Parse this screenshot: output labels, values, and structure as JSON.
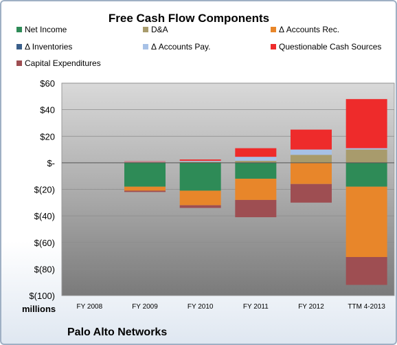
{
  "chart_data": {
    "type": "bar",
    "stacked": true,
    "title": "Free Cash Flow Components",
    "units_label": "millions",
    "company_label": "Palo Alto Networks",
    "categories": [
      "FY 2008",
      "FY 2009",
      "FY 2010",
      "FY 2011",
      "FY 2012",
      "TTM 4-2013"
    ],
    "ylim": [
      -100,
      60
    ],
    "yticks": [
      60,
      40,
      20,
      0,
      -20,
      -40,
      -60,
      -80,
      -100
    ],
    "ytick_labels": [
      "$60",
      "$40",
      "$20",
      "$-",
      "$(20)",
      "$(40)",
      "$(60)",
      "$(80)",
      "$(100)"
    ],
    "grid": true,
    "legend_position": "top",
    "series": [
      {
        "name": "Net Income",
        "color": "#2e8b57",
        "values": [
          0,
          -18,
          -21,
          -12,
          0,
          -18
        ]
      },
      {
        "name": "D&A",
        "color": "#a89b6c",
        "values": [
          0,
          0.5,
          0.8,
          1.5,
          6,
          10
        ]
      },
      {
        "name": "Δ Accounts Rec.",
        "color": "#e8862a",
        "values": [
          0,
          -3,
          -11,
          -16,
          -16,
          -53
        ]
      },
      {
        "name": "Δ Inventories",
        "color": "#3a5f8a",
        "values": [
          0,
          0,
          0,
          0,
          0,
          0
        ]
      },
      {
        "name": "Δ Accounts Pay.",
        "color": "#a7c1e6",
        "values": [
          0,
          0.3,
          0.7,
          3,
          4,
          1
        ]
      },
      {
        "name": "Questionable Cash Sources",
        "color": "#ee2b2b",
        "values": [
          0,
          0.3,
          1,
          6.5,
          15,
          37
        ]
      },
      {
        "name": "Capital Expenditures",
        "color": "#9e4e52",
        "values": [
          0,
          -1,
          -2,
          -13,
          -14,
          -21
        ]
      }
    ]
  }
}
